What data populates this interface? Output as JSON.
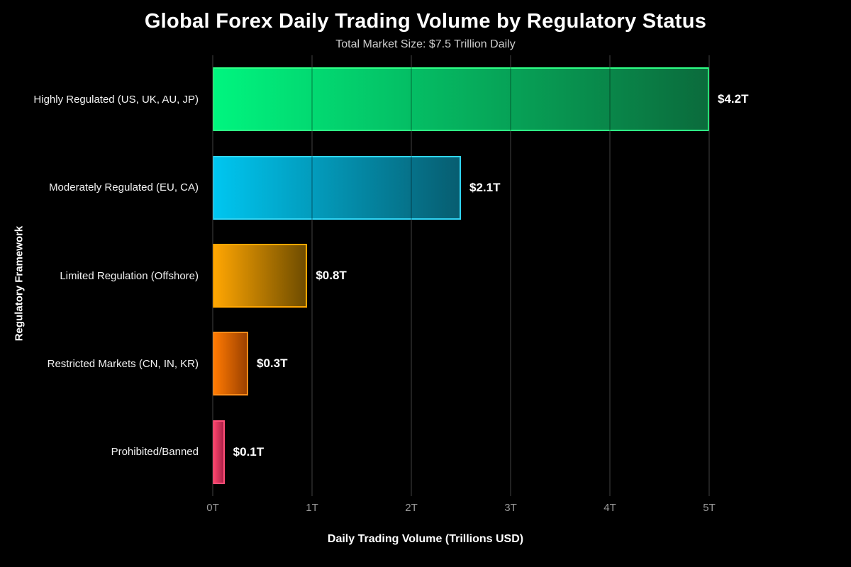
{
  "header": {
    "title": "Global Forex Daily Trading Volume by Regulatory Status",
    "subtitle": "Total Market Size: $7.5 Trillion Daily"
  },
  "axes": {
    "x_title": "Daily Trading Volume (Trillions USD)",
    "y_title": "Regulatory Framework"
  },
  "colors": {
    "background": "#000000",
    "title_text": "#ffffff",
    "subtitle_text": "#cccccc",
    "category_label_text": "#f2f2f2",
    "tick_label_text": "#999999",
    "gridline": "#2b2b2b",
    "value_label_text": "#ffffff"
  },
  "chart_data": {
    "type": "bar",
    "orientation": "horizontal",
    "title": "Global Forex Daily Trading Volume by Regulatory Status",
    "subtitle": "Total Market Size: $7.5 Trillion Daily",
    "xlabel": "Daily Trading Volume (Trillions USD)",
    "ylabel": "Regulatory Framework",
    "xlim": [
      0,
      5
    ],
    "x_ticks": [
      0,
      1,
      2,
      3,
      4,
      5
    ],
    "x_tick_labels": [
      "0T",
      "1T",
      "2T",
      "3T",
      "4T",
      "5T"
    ],
    "grid": true,
    "legend": false,
    "categories": [
      "Highly Regulated (US, UK, AU, JP)",
      "Moderately Regulated (EU, CA)",
      "Limited Regulation (Offshore)",
      "Restricted Markets (CN, IN, KR)",
      "Prohibited/Banned"
    ],
    "values": [
      4.2,
      2.1,
      0.8,
      0.3,
      0.1
    ],
    "value_labels": [
      "$4.2T",
      "$2.1T",
      "$0.8T",
      "$0.3T",
      "$0.1T"
    ],
    "bar_render_max": 4.2,
    "bar_colors": [
      {
        "start": "#00f57f",
        "end": "#0b6b3c",
        "border": "#2eff85"
      },
      {
        "start": "#00c6f0",
        "end": "#075d70",
        "border": "#30d5f5"
      },
      {
        "start": "#ffa602",
        "end": "#6e4c00",
        "border": "#ffa602"
      },
      {
        "start": "#ff7a02",
        "end": "#9c4100",
        "border": "#ff8c1a"
      },
      {
        "start": "#f9436b",
        "end": "#aa2148",
        "border": "#ff4f78"
      }
    ]
  }
}
